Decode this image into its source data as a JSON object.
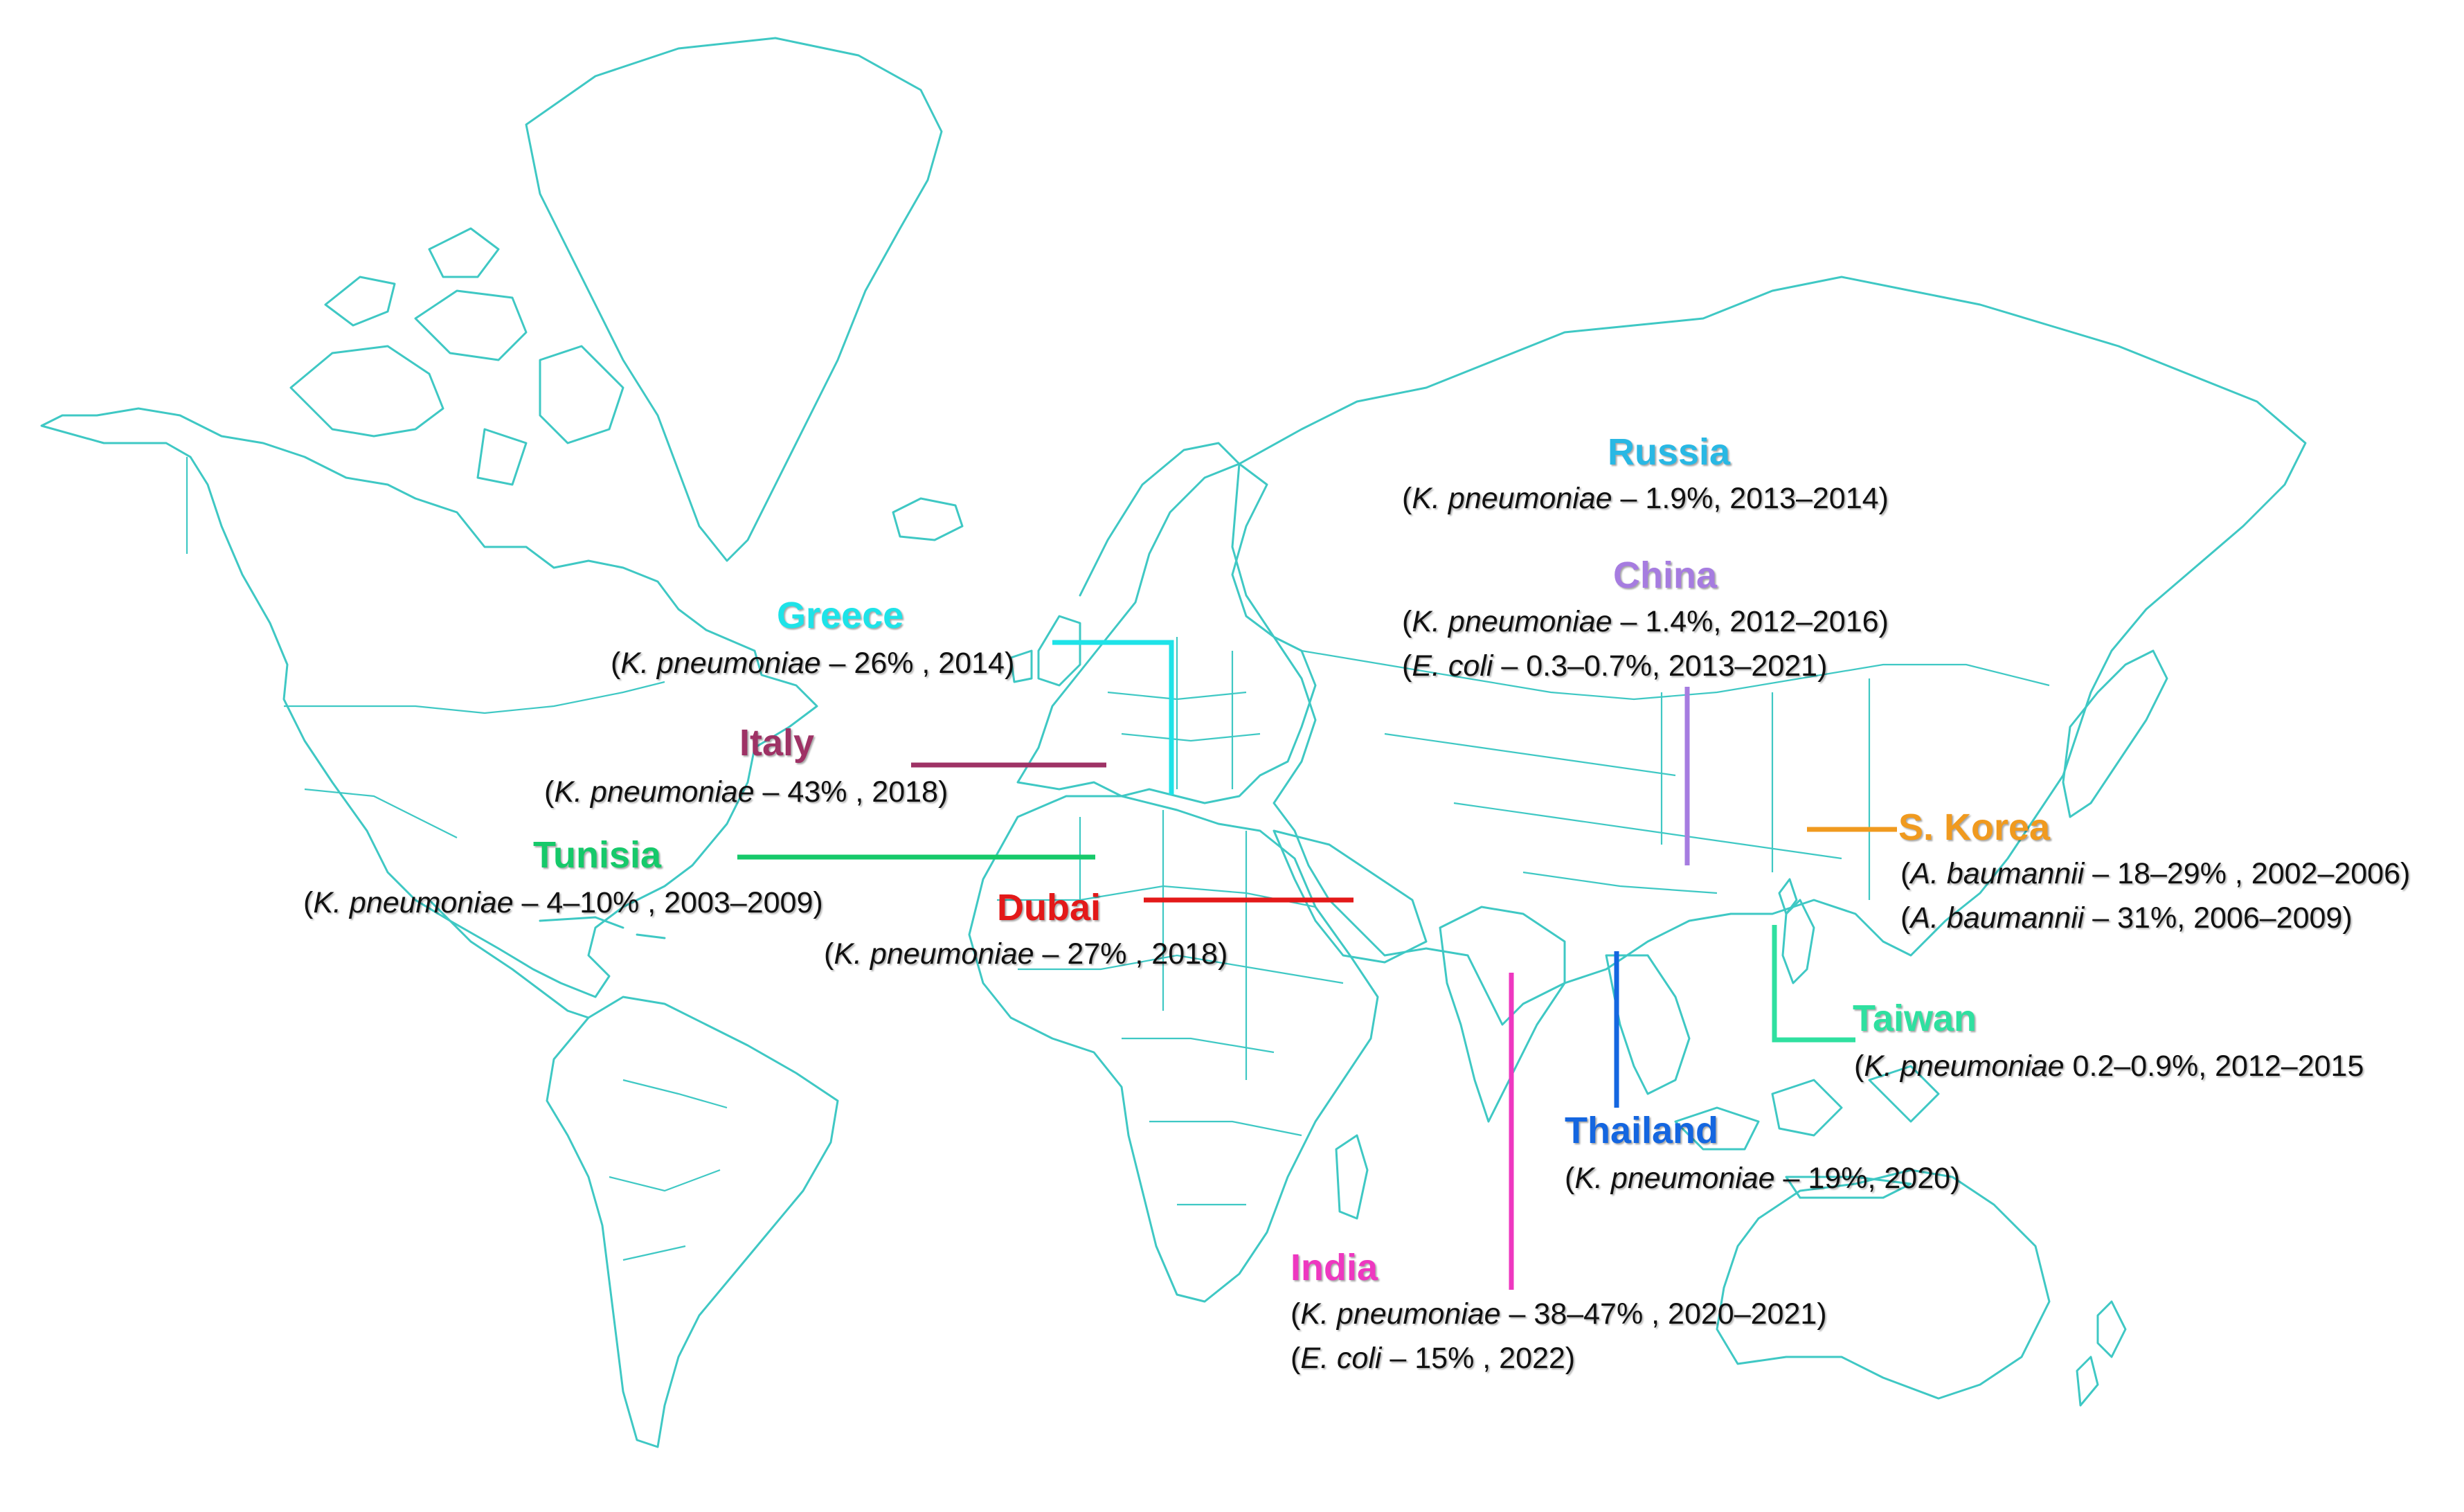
{
  "palette": {
    "map_stroke": "#3fc8c4",
    "greece": "#1ee3e8",
    "italy": "#9e3265",
    "tunisia": "#16c96a",
    "dubai": "#e31919",
    "russia": "#29b8e4",
    "china": "#a67ce0",
    "skorea": "#f09a1f",
    "taiwan": "#2fe0a0",
    "thailand": "#1466e0",
    "india": "#ee38c0"
  },
  "markers": [
    {
      "id": "greece",
      "country": "Greece",
      "lines": [
        {
          "organism": "K. pneumoniae",
          "text": " – 26% , 2014)"
        }
      ]
    },
    {
      "id": "italy",
      "country": "Italy",
      "lines": [
        {
          "organism": "K. pneumoniae",
          "text": " – 43% , 2018)"
        }
      ]
    },
    {
      "id": "tunisia",
      "country": "Tunisia",
      "lines": [
        {
          "organism": "K. pneumoniae",
          "text": " – 4–10% , 2003–2009)"
        }
      ]
    },
    {
      "id": "dubai",
      "country": "Dubai",
      "lines": [
        {
          "organism": "K. pneumoniae",
          "text": " – 27% , 2018)"
        }
      ]
    },
    {
      "id": "russia",
      "country": "Russia",
      "lines": [
        {
          "organism": "K. pneumoniae",
          "text": " – 1.9%, 2013–2014)"
        }
      ]
    },
    {
      "id": "china",
      "country": "China",
      "lines": [
        {
          "organism": "K. pneumoniae",
          "text": " – 1.4%, 2012–2016)"
        },
        {
          "organism": "E. coli",
          "text": " – 0.3–0.7%, 2013–2021)"
        }
      ]
    },
    {
      "id": "skorea",
      "country": "S. Korea",
      "lines": [
        {
          "organism": "A. baumannii",
          "text": " – 18–29% , 2002–2006)"
        },
        {
          "organism": "A. baumannii",
          "text": " – 31%, 2006–2009)"
        }
      ]
    },
    {
      "id": "taiwan",
      "country": "Taiwan",
      "lines": [
        {
          "organism": "K. pneumoniae",
          "text": " 0.2–0.9%, 2012–2015"
        }
      ]
    },
    {
      "id": "thailand",
      "country": "Thailand",
      "lines": [
        {
          "organism": "K. pneumoniae",
          "text": " – 19%, 2020)"
        }
      ]
    },
    {
      "id": "india",
      "country": "India",
      "lines": [
        {
          "organism": "K. pneumoniae",
          "text": " – 38–47% , 2020–2021)"
        },
        {
          "organism": "E. coli",
          "text": " – 15% , 2022)"
        }
      ]
    }
  ]
}
